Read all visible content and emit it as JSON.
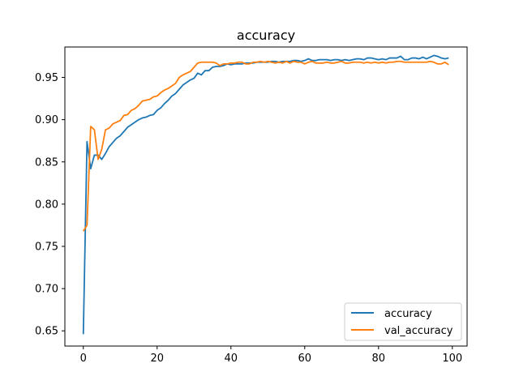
{
  "chart_data": {
    "type": "line",
    "title": "accuracy",
    "xlabel": "",
    "ylabel": "",
    "xlim": [
      -5,
      104
    ],
    "ylim": [
      0.632,
      0.986
    ],
    "xticks": [
      0,
      20,
      40,
      60,
      80,
      100
    ],
    "xtick_labels": [
      "0",
      "20",
      "40",
      "60",
      "80",
      "100"
    ],
    "yticks": [
      0.65,
      0.7,
      0.75,
      0.8,
      0.85,
      0.9,
      0.95
    ],
    "ytick_labels": [
      "0.65",
      "0.70",
      "0.75",
      "0.80",
      "0.85",
      "0.90",
      "0.95"
    ],
    "grid": false,
    "legend_position": "lower-right",
    "series": [
      {
        "name": "accuracy",
        "color": "#1f77b4",
        "x": [
          0,
          1,
          2,
          3,
          4,
          5,
          6,
          7,
          8,
          9,
          10,
          11,
          12,
          13,
          14,
          15,
          16,
          17,
          18,
          19,
          20,
          21,
          22,
          23,
          24,
          25,
          26,
          27,
          28,
          29,
          30,
          31,
          32,
          33,
          34,
          35,
          36,
          37,
          38,
          39,
          40,
          41,
          42,
          43,
          44,
          45,
          46,
          47,
          48,
          49,
          50,
          51,
          52,
          53,
          54,
          55,
          56,
          57,
          58,
          59,
          60,
          61,
          62,
          63,
          64,
          65,
          66,
          67,
          68,
          69,
          70,
          71,
          72,
          73,
          74,
          75,
          76,
          77,
          78,
          79,
          80,
          81,
          82,
          83,
          84,
          85,
          86,
          87,
          88,
          89,
          90,
          91,
          92,
          93,
          94,
          95,
          96,
          97,
          98,
          99
        ],
        "values": [
          0.646,
          0.874,
          0.842,
          0.858,
          0.858,
          0.853,
          0.86,
          0.868,
          0.873,
          0.878,
          0.881,
          0.886,
          0.891,
          0.894,
          0.897,
          0.9,
          0.902,
          0.903,
          0.905,
          0.906,
          0.911,
          0.914,
          0.919,
          0.923,
          0.928,
          0.931,
          0.936,
          0.941,
          0.944,
          0.947,
          0.949,
          0.955,
          0.953,
          0.958,
          0.958,
          0.962,
          0.963,
          0.963,
          0.964,
          0.966,
          0.965,
          0.966,
          0.966,
          0.966,
          0.967,
          0.967,
          0.967,
          0.968,
          0.968,
          0.968,
          0.968,
          0.969,
          0.969,
          0.968,
          0.969,
          0.969,
          0.969,
          0.97,
          0.97,
          0.969,
          0.97,
          0.972,
          0.97,
          0.97,
          0.971,
          0.971,
          0.971,
          0.97,
          0.971,
          0.971,
          0.97,
          0.971,
          0.97,
          0.971,
          0.972,
          0.972,
          0.971,
          0.973,
          0.973,
          0.972,
          0.971,
          0.972,
          0.971,
          0.973,
          0.973,
          0.973,
          0.975,
          0.971,
          0.971,
          0.973,
          0.973,
          0.972,
          0.974,
          0.972,
          0.974,
          0.976,
          0.975,
          0.973,
          0.972,
          0.973
        ]
      },
      {
        "name": "val_accuracy",
        "color": "#ff7f0e",
        "x": [
          0,
          1,
          2,
          3,
          4,
          5,
          6,
          7,
          8,
          9,
          10,
          11,
          12,
          13,
          14,
          15,
          16,
          17,
          18,
          19,
          20,
          21,
          22,
          23,
          24,
          25,
          26,
          27,
          28,
          29,
          30,
          31,
          32,
          33,
          34,
          35,
          36,
          37,
          38,
          39,
          40,
          41,
          42,
          43,
          44,
          45,
          46,
          47,
          48,
          49,
          50,
          51,
          52,
          53,
          54,
          55,
          56,
          57,
          58,
          59,
          60,
          61,
          62,
          63,
          64,
          65,
          66,
          67,
          68,
          69,
          70,
          71,
          72,
          73,
          74,
          75,
          76,
          77,
          78,
          79,
          80,
          81,
          82,
          83,
          84,
          85,
          86,
          87,
          88,
          89,
          90,
          91,
          92,
          93,
          94,
          95,
          96,
          97,
          98,
          99
        ],
        "values": [
          0.768,
          0.775,
          0.892,
          0.888,
          0.853,
          0.865,
          0.888,
          0.89,
          0.895,
          0.897,
          0.899,
          0.905,
          0.906,
          0.911,
          0.913,
          0.917,
          0.922,
          0.923,
          0.924,
          0.927,
          0.928,
          0.932,
          0.935,
          0.937,
          0.94,
          0.943,
          0.95,
          0.953,
          0.955,
          0.957,
          0.962,
          0.967,
          0.968,
          0.968,
          0.968,
          0.968,
          0.967,
          0.964,
          0.966,
          0.966,
          0.967,
          0.967,
          0.968,
          0.968,
          0.966,
          0.966,
          0.968,
          0.968,
          0.969,
          0.968,
          0.969,
          0.968,
          0.967,
          0.968,
          0.967,
          0.969,
          0.967,
          0.969,
          0.968,
          0.968,
          0.966,
          0.968,
          0.969,
          0.967,
          0.967,
          0.967,
          0.968,
          0.967,
          0.967,
          0.968,
          0.969,
          0.967,
          0.967,
          0.968,
          0.968,
          0.968,
          0.967,
          0.968,
          0.967,
          0.968,
          0.967,
          0.968,
          0.967,
          0.968,
          0.968,
          0.969,
          0.969,
          0.968,
          0.968,
          0.968,
          0.968,
          0.968,
          0.968,
          0.968,
          0.969,
          0.968,
          0.966,
          0.966,
          0.968,
          0.965
        ]
      }
    ]
  }
}
